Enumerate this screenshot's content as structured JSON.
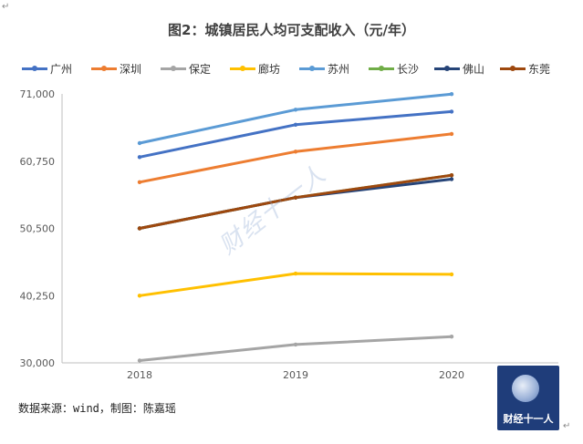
{
  "chart_data": {
    "type": "line",
    "title": "图2：城镇居民人均可支配收入（元/年）",
    "x": [
      "2018",
      "2019",
      "2020"
    ],
    "ylim": [
      30000,
      71000
    ],
    "yticks": [
      "30,000",
      "40,250",
      "50,500",
      "60,750",
      "71,000"
    ],
    "ytick_values": [
      30000,
      40250,
      50500,
      60750,
      71000
    ],
    "grid": false,
    "legend_position": "top",
    "series": [
      {
        "name": "广州",
        "color": "#4472C4",
        "values": [
          61370,
          66300,
          68300
        ]
      },
      {
        "name": "深圳",
        "color": "#ED7D31",
        "values": [
          57540,
          62200,
          64900
        ]
      },
      {
        "name": "保定",
        "color": "#A5A5A5",
        "values": [
          30350,
          32800,
          34000
        ]
      },
      {
        "name": "廊坊",
        "color": "#FFC000",
        "values": [
          40250,
          43600,
          43500
        ]
      },
      {
        "name": "苏州",
        "color": "#5B9BD5",
        "values": [
          63500,
          68600,
          70970
        ]
      },
      {
        "name": "长沙",
        "color": "#70AD47",
        "values": [
          50500,
          55200,
          58600
        ]
      },
      {
        "name": "佛山",
        "color": "#264478",
        "values": [
          50500,
          55200,
          58000
        ]
      },
      {
        "name": "东莞",
        "color": "#9E480E",
        "values": [
          50500,
          55200,
          58600
        ]
      }
    ]
  },
  "watermark": "财经十一人",
  "source_text": "数据来源：wind，制图：陈嘉瑶",
  "logo_text": "财经十一人",
  "corner_mark": "↵"
}
